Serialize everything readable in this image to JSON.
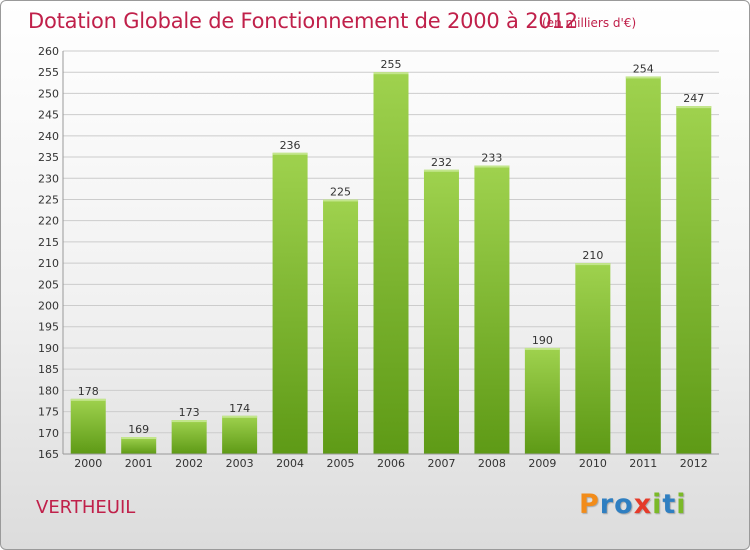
{
  "title": "Dotation Globale de Fonctionnement de 2000 à 2012",
  "unit_note": "(en milliers d'€)",
  "commune": "VERTHEUIL",
  "logo": {
    "letters": [
      "P",
      "r",
      "o",
      "x",
      "i",
      "t",
      "i"
    ],
    "colors": [
      "#f28c1a",
      "#2f7fc1",
      "#2f7fc1",
      "#e53b2a",
      "#7bb928",
      "#2f7fc1",
      "#7bb928"
    ]
  },
  "colors": {
    "bar_top": "#9fd24e",
    "bar_bottom": "#5e9a16",
    "title": "#c0204a"
  },
  "chart_data": {
    "type": "bar",
    "categories": [
      "2000",
      "2001",
      "2002",
      "2003",
      "2004",
      "2005",
      "2006",
      "2007",
      "2008",
      "2009",
      "2010",
      "2011",
      "2012"
    ],
    "values": [
      178,
      169,
      173,
      174,
      236,
      225,
      255,
      232,
      233,
      190,
      210,
      254,
      247
    ],
    "ylim": [
      165,
      260
    ],
    "yticks": [
      165,
      170,
      175,
      180,
      185,
      190,
      195,
      200,
      205,
      210,
      215,
      220,
      225,
      230,
      235,
      240,
      245,
      250,
      255,
      260
    ],
    "grid": true,
    "xlabel": "",
    "ylabel": ""
  }
}
